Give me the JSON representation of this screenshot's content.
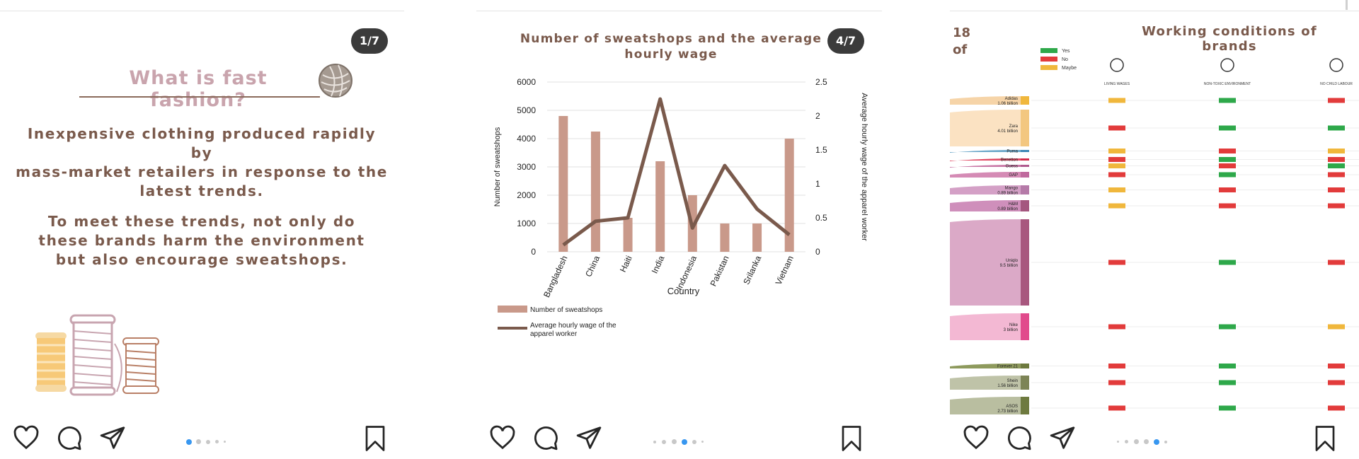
{
  "post1": {
    "counter": "1/7",
    "title": "What is fast fashion?",
    "paragraph1": [
      "Inexpensive clothing produced rapidly by",
      "mass-market retailers in response to the",
      "latest trends."
    ],
    "paragraph2": [
      "To meet these trends, not only do",
      "these brands harm the environment",
      "but also encourage sweatshops."
    ]
  },
  "post2": {
    "counter": "4/7",
    "title_lines": [
      "Number of sweatshops and the average",
      "hourly wage"
    ]
  },
  "post3": {
    "title": "Working conditions of brands",
    "left_fragments": [
      "18",
      "of"
    ],
    "legend": [
      "Yes",
      "No",
      "Maybe"
    ],
    "columns": [
      "LIVING WAGES",
      "NON-TOXIC ENVIRONMENT",
      "NO CHILD LABOUR"
    ],
    "brands": [
      {
        "name": "Adidas",
        "value": "1.06 billion",
        "statuses": [
          "maybe",
          "yes",
          "no"
        ]
      },
      {
        "name": "Zara",
        "value": "4.01 billion",
        "statuses": [
          "no",
          "yes",
          "yes"
        ]
      },
      {
        "name": "Puma",
        "value": "",
        "statuses": [
          "maybe",
          "no",
          "maybe"
        ]
      },
      {
        "name": "Benetton",
        "value": "",
        "statuses": [
          "no",
          "yes",
          "no"
        ]
      },
      {
        "name": "Guess",
        "value": "",
        "statuses": [
          "maybe",
          "no",
          "yes"
        ]
      },
      {
        "name": "GAP",
        "value": "",
        "statuses": [
          "no",
          "yes",
          "no"
        ]
      },
      {
        "name": "Mango",
        "value": "0.89 billion",
        "statuses": [
          "maybe",
          "no",
          "no"
        ]
      },
      {
        "name": "H&M",
        "value": "0.89 billion",
        "statuses": [
          "maybe",
          "no",
          "no"
        ]
      },
      {
        "name": "Uniqlo",
        "value": "9.5 billion",
        "statuses": [
          "no",
          "yes",
          "no"
        ]
      },
      {
        "name": "Nike",
        "value": "3 billion",
        "statuses": [
          "no",
          "yes",
          "maybe"
        ]
      },
      {
        "name": "Forever 21",
        "value": "",
        "statuses": [
          "no",
          "yes",
          "no"
        ]
      },
      {
        "name": "Shein",
        "value": "1.56 billion",
        "statuses": [
          "no",
          "yes",
          "no"
        ]
      },
      {
        "name": "ASOS",
        "value": "2.73 billion",
        "statuses": [
          "no",
          "yes",
          "no"
        ]
      }
    ]
  },
  "colors": {
    "yes": "#2ea84a",
    "no": "#e23b3b",
    "maybe": "#f0b73c",
    "accent": "#3897f0",
    "dot": "#c8c8c8"
  },
  "icons": [
    "heart-icon",
    "comment-icon",
    "share-icon",
    "bookmark-icon"
  ],
  "chart_data": {
    "type": "bar",
    "title": "Number of sweatshops and the average hourly wage",
    "xlabel": "Country",
    "ylabel": "Number of sweatshops",
    "y2label": "Average hourly wage of the apparel worker",
    "categories": [
      "Bangladesh",
      "China",
      "Haiti",
      "India",
      "Indonesia",
      "Pakistan",
      "Srilanka",
      "Vietnam"
    ],
    "ylim": [
      0,
      6000
    ],
    "yticks": [
      "0",
      "1000",
      "2000",
      "3000",
      "4000",
      "5000",
      "6000"
    ],
    "y2lim": [
      0,
      2.5
    ],
    "y2ticks": [
      "0",
      "0.5",
      "1",
      "1.5",
      "2",
      "2.5"
    ],
    "series": [
      {
        "name": "Number of sweatshops",
        "type": "bar",
        "values": [
          4800,
          4250,
          1200,
          3200,
          2000,
          1000,
          1000,
          4000
        ]
      },
      {
        "name": "Average hourly wage of the apparel worker",
        "type": "line",
        "axis": "right",
        "values": [
          0.1,
          0.45,
          0.5,
          2.25,
          0.35,
          1.27,
          0.63,
          0.25
        ]
      }
    ],
    "legend": "bottom-left",
    "grid": true
  }
}
